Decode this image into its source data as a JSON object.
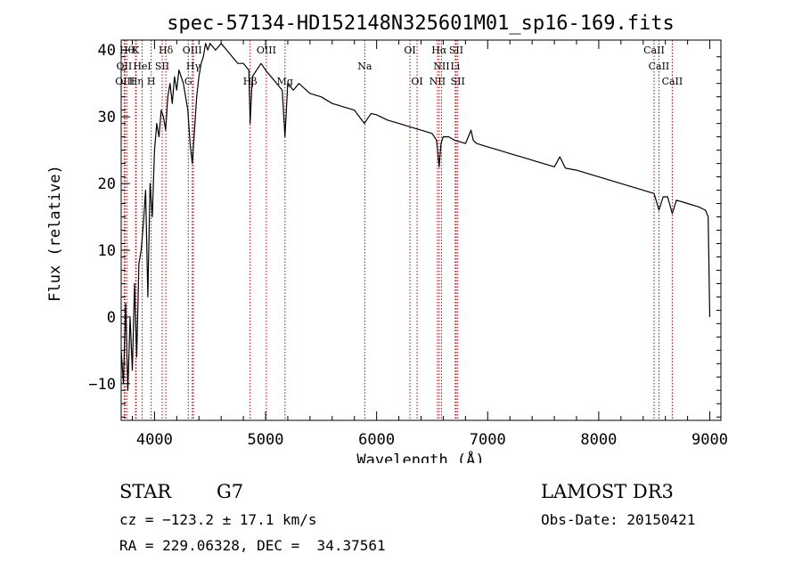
{
  "chart_data": {
    "type": "line",
    "title": "spec-57134-HD152148N325601M01_sp16-169.fits",
    "xlabel": "Wavelength (Å)",
    "ylabel": "Flux (relative)",
    "xlim": [
      3700,
      9100
    ],
    "ylim": [
      -15.5,
      41.5
    ],
    "xticks": [
      4000,
      5000,
      6000,
      7000,
      8000,
      9000
    ],
    "xtick_labels": [
      "4000",
      "5000",
      "6000",
      "7000",
      "8000",
      "9000"
    ],
    "yticks": [
      -10,
      0,
      10,
      20,
      30,
      40
    ],
    "ytick_labels": [
      "−10",
      "0",
      "10",
      "20",
      "30",
      "40"
    ],
    "line_color": "#000000",
    "marker_color": "#c00000",
    "series": [
      {
        "name": "flux",
        "x": [
          3700,
          3720,
          3740,
          3760,
          3780,
          3800,
          3820,
          3840,
          3860,
          3880,
          3900,
          3920,
          3940,
          3960,
          3980,
          4000,
          4020,
          4040,
          4060,
          4080,
          4100,
          4120,
          4140,
          4160,
          4180,
          4200,
          4220,
          4240,
          4260,
          4280,
          4300,
          4320,
          4340,
          4360,
          4380,
          4400,
          4420,
          4440,
          4460,
          4480,
          4500,
          4550,
          4600,
          4650,
          4700,
          4750,
          4800,
          4850,
          4861,
          4880,
          4920,
          4960,
          5000,
          5050,
          5100,
          5150,
          5175,
          5200,
          5250,
          5300,
          5400,
          5500,
          5600,
          5700,
          5800,
          5890,
          5950,
          6000,
          6100,
          6200,
          6300,
          6400,
          6500,
          6540,
          6563,
          6580,
          6600,
          6650,
          6700,
          6800,
          6850,
          6870,
          6900,
          7000,
          7100,
          7200,
          7300,
          7400,
          7500,
          7600,
          7650,
          7700,
          7800,
          7900,
          8000,
          8100,
          8200,
          8300,
          8400,
          8498,
          8542,
          8580,
          8620,
          8662,
          8700,
          8800,
          8900,
          8960,
          8985,
          9000
        ],
        "y": [
          -5,
          -10,
          2,
          -11,
          0,
          -8,
          5,
          -6,
          8,
          10,
          14,
          19,
          3,
          20,
          15,
          25,
          29,
          27,
          31,
          30,
          28,
          33,
          35,
          32,
          36,
          34,
          37,
          36,
          35,
          33,
          31,
          26,
          23,
          28,
          33,
          36,
          38,
          39,
          41,
          40,
          41,
          40,
          41,
          40,
          39,
          38,
          38,
          37,
          29,
          36,
          37,
          38,
          37,
          36,
          35,
          34,
          27,
          35,
          34,
          35,
          33.5,
          33,
          32,
          31.5,
          31,
          29,
          30.5,
          30.3,
          29.5,
          29,
          28.5,
          28,
          27.5,
          26.5,
          22.5,
          26,
          27,
          27,
          26.5,
          26,
          28,
          26.5,
          26,
          25.5,
          25,
          24.5,
          24,
          23.5,
          23,
          22.5,
          24,
          22.3,
          22,
          21.5,
          21,
          20.5,
          20,
          19.5,
          19,
          18.5,
          16,
          18,
          18,
          15.5,
          17.5,
          17,
          16.5,
          16,
          15,
          0
        ]
      }
    ],
    "line_markers": [
      {
        "x": 3750,
        "label": "Hθ",
        "row": 0
      },
      {
        "x": 3830,
        "label": "K",
        "row": 0
      },
      {
        "x": 4102,
        "label": "Hδ",
        "row": 0
      },
      {
        "x": 4340,
        "label": "OIII",
        "row": 0
      },
      {
        "x": 5007,
        "label": "OIII",
        "row": 0
      },
      {
        "x": 6300,
        "label": "OI",
        "row": 0
      },
      {
        "x": 6563,
        "label": "Hα",
        "row": 0
      },
      {
        "x": 6717,
        "label": "SII",
        "row": 0
      },
      {
        "x": 8498,
        "label": "CaII",
        "row": 0
      },
      {
        "x": 3727,
        "label": "OII",
        "row": 1
      },
      {
        "x": 3889,
        "label": "HeI",
        "row": 1
      },
      {
        "x": 4069,
        "label": "SII",
        "row": 1
      },
      {
        "x": 4350,
        "label": "Hγ",
        "row": 1
      },
      {
        "x": 6584,
        "label": "NII",
        "row": 1
      },
      {
        "x": 6708,
        "label": "Li",
        "row": 1
      },
      {
        "x": 8542,
        "label": "CaII",
        "row": 1
      },
      {
        "x": 3734,
        "label": "OIII",
        "row": 2
      },
      {
        "x": 3835,
        "label": "Hη",
        "row": 2
      },
      {
        "x": 3970,
        "label": "H",
        "row": 2
      },
      {
        "x": 4304,
        "label": "G",
        "row": 2
      },
      {
        "x": 4861,
        "label": "Hβ",
        "row": 2
      },
      {
        "x": 5175,
        "label": "Mg",
        "row": 2
      },
      {
        "x": 5893,
        "label": "Na",
        "row": 1
      },
      {
        "x": 6364,
        "label": "OI",
        "row": 2
      },
      {
        "x": 6548,
        "label": "NII",
        "row": 2
      },
      {
        "x": 6731,
        "label": "SII",
        "row": 2
      },
      {
        "x": 8662,
        "label": "CaII",
        "row": 2
      }
    ]
  },
  "info": {
    "object_class": "STAR",
    "subclass": "G7",
    "redshift": "cz = −123.2 ± 17.1 km/s",
    "coords": "RA = 229.06328, DEC =  34.37561",
    "survey": "LAMOST DR3",
    "obs_date": "Obs-Date: 20150421"
  }
}
